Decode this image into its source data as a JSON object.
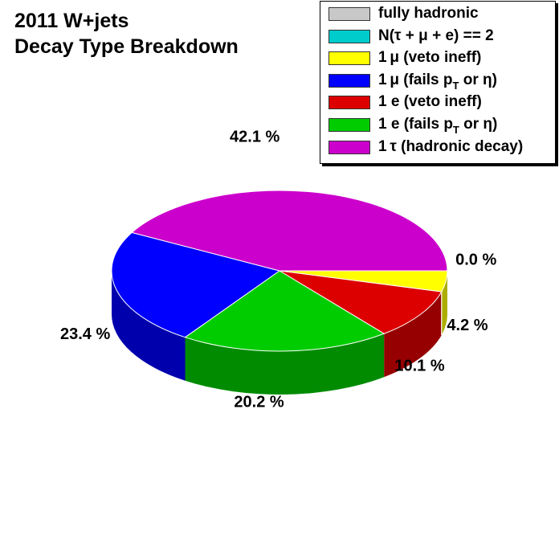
{
  "chart_data": {
    "type": "pie",
    "title_lines": [
      "2011 W+jets",
      "Decay Type Breakdown"
    ],
    "slices": [
      {
        "name": "fully hadronic",
        "value": 0.0,
        "label": "",
        "color": "#c8c8c8"
      },
      {
        "name": "N(τ + μ + e) == 2",
        "value": 0.0,
        "label": "0.0 %",
        "color": "#00cccc"
      },
      {
        "name": "1 μ (veto ineff)",
        "value": 4.2,
        "label": "4.2 %",
        "color": "#ffff00"
      },
      {
        "name": "1 μ (fails p_T or η)",
        "value": 23.4,
        "label": "23.4 %",
        "color": "#0000ff"
      },
      {
        "name": "1 e (veto ineff)",
        "value": 10.1,
        "label": "10.1 %",
        "color": "#dd0000"
      },
      {
        "name": "1 e (fails p_T or η)",
        "value": 20.2,
        "label": "20.2 %",
        "color": "#00cc00"
      },
      {
        "name": "1 τ (hadronic decay)",
        "value": 42.1,
        "label": "42.1 %",
        "color": "#cc00cc"
      }
    ],
    "legend_placement": "top-right",
    "style": "3d"
  },
  "legend": {
    "entries": [
      {
        "pre": "fully hadronic",
        "sub": "",
        "post": "",
        "color": "#c8c8c8"
      },
      {
        "pre": "N(τ + μ + e) == 2",
        "sub": "",
        "post": "",
        "color": "#00cccc"
      },
      {
        "pre": "1 μ (veto ineff)",
        "sub": "",
        "post": "",
        "color": "#ffff00"
      },
      {
        "pre": "1 μ (fails p",
        "sub": "T",
        "post": " or η)",
        "color": "#0000ff"
      },
      {
        "pre": "1 e (veto ineff)",
        "sub": "",
        "post": "",
        "color": "#dd0000"
      },
      {
        "pre": "1 e (fails p",
        "sub": "T",
        "post": " or η)",
        "color": "#00cc00"
      },
      {
        "pre": "1 τ (hadronic decay)",
        "sub": "",
        "post": "",
        "color": "#cc00cc"
      }
    ]
  }
}
